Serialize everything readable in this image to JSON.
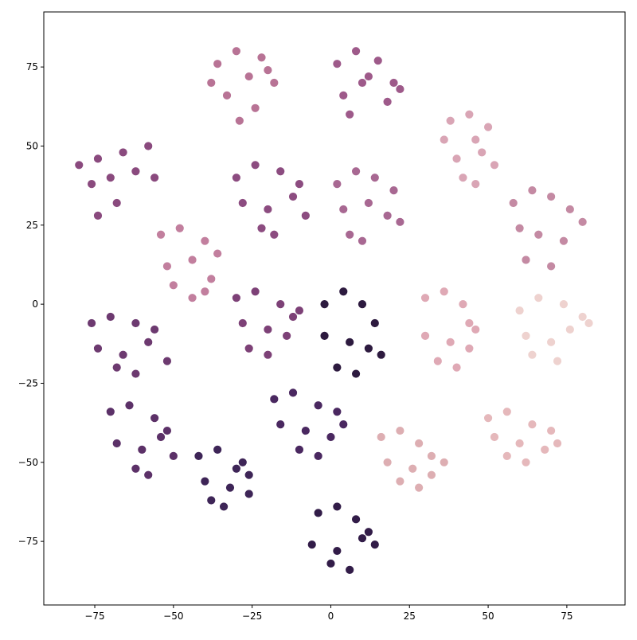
{
  "chart_data": {
    "type": "scatter",
    "xlim": [
      -91.2,
      93.5
    ],
    "ylim": [
      -95.1,
      92.4
    ],
    "xticks": [
      {
        "value": -75,
        "label": "−75"
      },
      {
        "value": -50,
        "label": "−50"
      },
      {
        "value": -25,
        "label": "−25"
      },
      0,
      25,
      50,
      75
    ],
    "yticks": [
      {
        "value": -75,
        "label": "−75"
      },
      {
        "value": -50,
        "label": "−50"
      },
      {
        "value": -25,
        "label": "−25"
      },
      0,
      25,
      50,
      75
    ],
    "grid": false,
    "series": [
      {
        "color": "#b87395",
        "x": [
          -36,
          -30,
          -22,
          -18,
          -33,
          -26,
          -38,
          -24,
          -29,
          -20
        ],
        "y": [
          76,
          80,
          78,
          70,
          66,
          72,
          70,
          62,
          58,
          74
        ]
      },
      {
        "color": "#9e5a8a",
        "x": [
          2,
          8,
          15,
          20,
          4,
          12,
          18,
          6,
          10,
          22
        ],
        "y": [
          76,
          80,
          77,
          70,
          66,
          72,
          64,
          60,
          70,
          68
        ]
      },
      {
        "color": "#d9a5b5",
        "x": [
          38,
          44,
          50,
          48,
          40,
          46,
          52,
          42,
          46,
          36
        ],
        "y": [
          58,
          60,
          56,
          48,
          46,
          52,
          44,
          40,
          38,
          52
        ]
      },
      {
        "color": "#8a4a7e",
        "x": [
          -80,
          -74,
          -66,
          -58,
          -76,
          -70,
          -62,
          -68,
          -74,
          -56
        ],
        "y": [
          44,
          46,
          48,
          50,
          38,
          40,
          42,
          32,
          28,
          40
        ]
      },
      {
        "color": "#8c4c80",
        "x": [
          -30,
          -24,
          -16,
          -10,
          -28,
          -20,
          -12,
          -22,
          -18,
          -8
        ],
        "y": [
          40,
          44,
          42,
          38,
          32,
          30,
          34,
          24,
          22,
          28
        ]
      },
      {
        "color": "#a86892",
        "x": [
          2,
          8,
          14,
          20,
          4,
          12,
          18,
          6,
          10,
          22
        ],
        "y": [
          38,
          42,
          40,
          36,
          30,
          32,
          28,
          22,
          20,
          26
        ]
      },
      {
        "color": "#c48aa3",
        "x": [
          58,
          64,
          70,
          76,
          60,
          66,
          74,
          62,
          70,
          80
        ],
        "y": [
          32,
          36,
          34,
          30,
          24,
          22,
          20,
          14,
          12,
          26
        ]
      },
      {
        "color": "#c27f9e",
        "x": [
          -54,
          -48,
          -40,
          -36,
          -52,
          -44,
          -38,
          -50,
          -44,
          -40
        ],
        "y": [
          22,
          24,
          20,
          16,
          12,
          14,
          8,
          6,
          2,
          4
        ]
      },
      {
        "color": "#7d4177",
        "x": [
          -30,
          -24,
          -16,
          -12,
          -28,
          -20,
          -14,
          -26,
          -20,
          -10
        ],
        "y": [
          2,
          4,
          0,
          -4,
          -6,
          -8,
          -10,
          -14,
          -16,
          -2
        ]
      },
      {
        "color": "#2d1a3f",
        "x": [
          -2,
          4,
          10,
          14,
          -2,
          6,
          12,
          2,
          8,
          16
        ],
        "y": [
          0,
          4,
          0,
          -6,
          -10,
          -12,
          -14,
          -20,
          -22,
          -16
        ]
      },
      {
        "color": "#6d3a70",
        "x": [
          -76,
          -70,
          -62,
          -56,
          -74,
          -66,
          -58,
          -68,
          -62,
          -52
        ],
        "y": [
          -6,
          -4,
          -6,
          -8,
          -14,
          -16,
          -12,
          -20,
          -22,
          -18
        ]
      },
      {
        "color": "#dfa9b5",
        "x": [
          30,
          36,
          42,
          44,
          30,
          38,
          44,
          34,
          40,
          46
        ],
        "y": [
          2,
          4,
          0,
          -6,
          -10,
          -12,
          -14,
          -18,
          -20,
          -8
        ]
      },
      {
        "color": "#eed2cf",
        "x": [
          60,
          66,
          74,
          80,
          62,
          70,
          76,
          64,
          72,
          82
        ],
        "y": [
          -2,
          2,
          0,
          -4,
          -10,
          -12,
          -8,
          -16,
          -18,
          -6
        ]
      },
      {
        "color": "#5c3168",
        "x": [
          -70,
          -64,
          -56,
          -52,
          -68,
          -60,
          -54,
          -62,
          -58,
          -50
        ],
        "y": [
          -34,
          -32,
          -36,
          -40,
          -44,
          -46,
          -42,
          -52,
          -54,
          -48
        ]
      },
      {
        "color": "#4a2860",
        "x": [
          -18,
          -12,
          -4,
          2,
          -16,
          -8,
          0,
          -10,
          -4,
          4
        ],
        "y": [
          -30,
          -28,
          -32,
          -34,
          -38,
          -40,
          -42,
          -46,
          -48,
          -38
        ]
      },
      {
        "color": "#3e2557",
        "x": [
          -42,
          -36,
          -28,
          -26,
          -40,
          -32,
          -26,
          -38,
          -34,
          -30
        ],
        "y": [
          -48,
          -46,
          -50,
          -54,
          -56,
          -58,
          -60,
          -62,
          -64,
          -52
        ]
      },
      {
        "color": "#e5b8bb",
        "x": [
          50,
          56,
          64,
          70,
          52,
          60,
          68,
          56,
          62,
          72
        ],
        "y": [
          -36,
          -34,
          -38,
          -40,
          -42,
          -44,
          -46,
          -48,
          -50,
          -44
        ]
      },
      {
        "color": "#ddaeb2",
        "x": [
          16,
          22,
          28,
          32,
          18,
          26,
          32,
          22,
          28,
          36
        ],
        "y": [
          -42,
          -40,
          -44,
          -48,
          -50,
          -52,
          -54,
          -56,
          -58,
          -50
        ]
      },
      {
        "color": "#321c48",
        "x": [
          -4,
          2,
          8,
          12,
          -6,
          2,
          10,
          0,
          6,
          14
        ],
        "y": [
          -66,
          -64,
          -68,
          -72,
          -76,
          -78,
          -74,
          -82,
          -84,
          -76
        ]
      }
    ]
  }
}
